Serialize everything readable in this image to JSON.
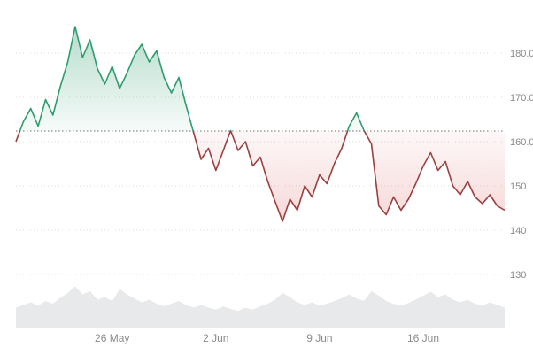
{
  "chart_data": {
    "type": "area",
    "subtype": "baseline-price-chart-with-volume",
    "title": "",
    "xlabel": "",
    "ylabel": "",
    "legend": "none",
    "grid": "horizontal-dotted",
    "baseline_value": 162.4,
    "xlim": [
      0,
      33
    ],
    "ylim": [
      118,
      189
    ],
    "x": [
      0,
      0.5,
      1,
      1.5,
      2,
      2.5,
      3,
      3.5,
      4,
      4.5,
      5,
      5.5,
      6,
      6.5,
      7,
      7.5,
      8,
      8.5,
      9,
      9.5,
      10,
      10.5,
      11,
      11.5,
      12,
      12.5,
      13,
      13.5,
      14,
      14.5,
      15,
      15.5,
      16,
      16.5,
      17,
      17.5,
      18,
      18.5,
      19,
      19.5,
      20,
      20.5,
      21,
      21.5,
      22,
      22.5,
      23,
      23.5,
      24,
      24.5,
      25,
      25.5,
      26,
      26.5,
      27,
      27.5,
      28,
      28.5,
      29,
      29.5,
      30,
      30.5,
      31,
      31.5,
      32,
      32.5,
      33
    ],
    "series": [
      {
        "name": "price",
        "values": [
          160,
          164.5,
          167.5,
          163.5,
          169.5,
          166,
          172.5,
          178,
          186,
          179,
          183,
          176.5,
          173,
          177,
          172,
          175.5,
          179.5,
          182,
          178,
          180.5,
          174.5,
          171,
          174.5,
          168,
          162,
          156,
          158.5,
          153.5,
          158,
          162.5,
          158,
          160,
          154.5,
          156.5,
          151,
          146.5,
          142,
          147,
          144.5,
          150,
          147.5,
          152.5,
          150.5,
          155,
          158.5,
          163.5,
          166.5,
          162.5,
          159.5,
          145.5,
          143.5,
          147.5,
          144.5,
          147,
          150.5,
          154.5,
          157.5,
          153.5,
          155.5,
          150,
          148,
          151,
          147.5,
          146,
          148,
          145.5,
          144.5
        ]
      },
      {
        "name": "volume_relative",
        "values": [
          0.3,
          0.34,
          0.38,
          0.33,
          0.4,
          0.36,
          0.45,
          0.52,
          0.62,
          0.5,
          0.55,
          0.42,
          0.46,
          0.4,
          0.58,
          0.5,
          0.44,
          0.38,
          0.42,
          0.36,
          0.32,
          0.36,
          0.4,
          0.34,
          0.3,
          0.34,
          0.3,
          0.27,
          0.32,
          0.28,
          0.25,
          0.3,
          0.27,
          0.32,
          0.36,
          0.42,
          0.52,
          0.46,
          0.38,
          0.34,
          0.38,
          0.33,
          0.36,
          0.4,
          0.44,
          0.5,
          0.44,
          0.4,
          0.55,
          0.48,
          0.4,
          0.36,
          0.33,
          0.37,
          0.42,
          0.48,
          0.54,
          0.46,
          0.5,
          0.42,
          0.38,
          0.42,
          0.36,
          0.33,
          0.38,
          0.34,
          0.3
        ]
      }
    ],
    "xticks": [
      {
        "x": 6.5,
        "label": "26 May"
      },
      {
        "x": 13.5,
        "label": "2 Jun"
      },
      {
        "x": 20.5,
        "label": "9 Jun"
      },
      {
        "x": 27.5,
        "label": "16 Jun"
      }
    ],
    "yticks": [
      {
        "value": 180,
        "label": "180.0"
      },
      {
        "value": 170,
        "label": "170.0"
      },
      {
        "value": 160,
        "label": "160.0"
      },
      {
        "value": 150,
        "label": "150"
      },
      {
        "value": 140,
        "label": "140"
      },
      {
        "value": 130,
        "label": "130"
      }
    ],
    "colors": {
      "above_line": "#2e9d6e",
      "above_fill": "#2e9d6e",
      "below_line": "#9c3f3f",
      "below_fill": "#d65050",
      "baseline": "#6f6f6f",
      "grid": "#dcdcdc",
      "volume_fill": "#e8e9eb",
      "axis_text": "#8a8a8a",
      "background": "#ffffff"
    }
  }
}
